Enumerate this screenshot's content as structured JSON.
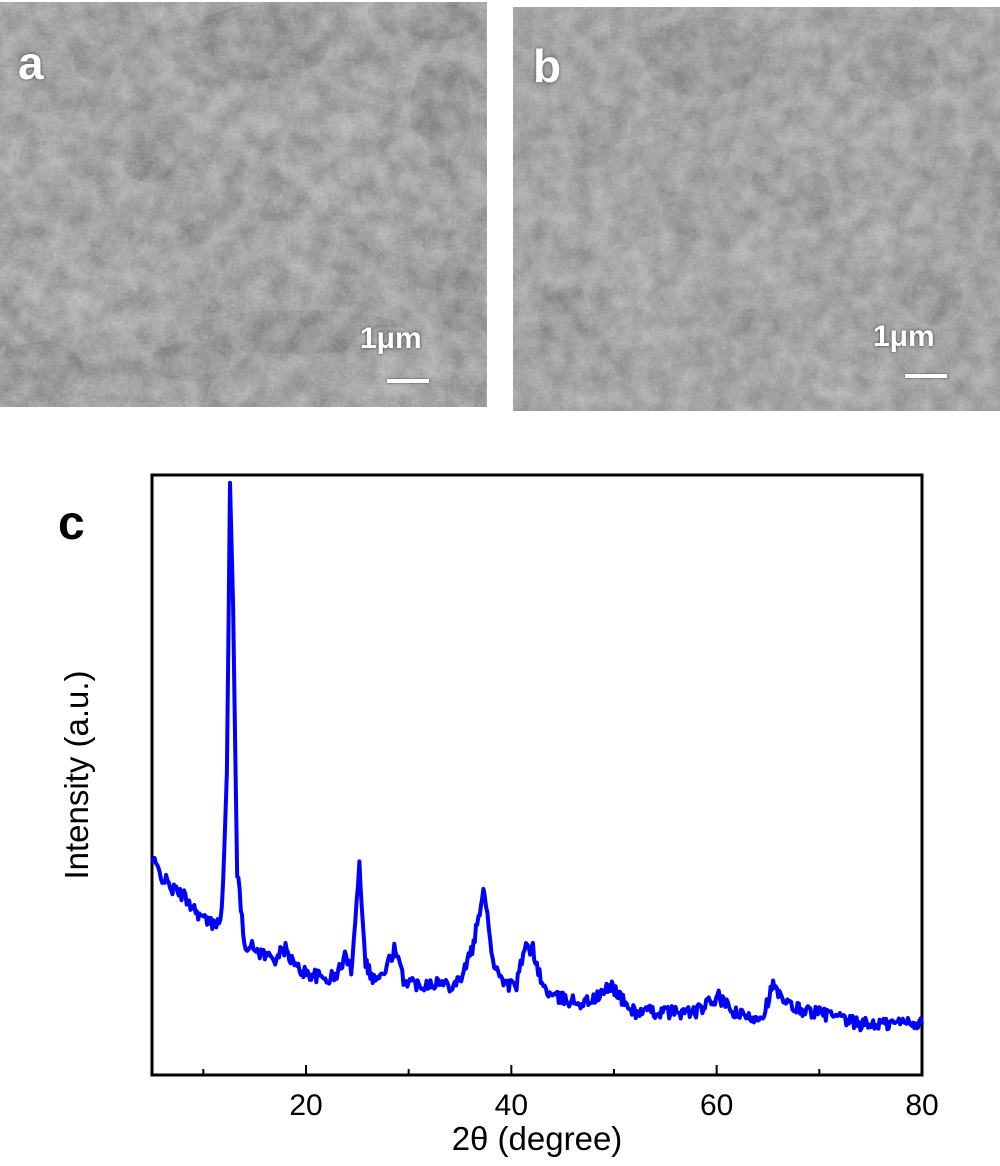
{
  "panels": {
    "a": {
      "letter": "a",
      "scale_label": "1μm"
    },
    "b": {
      "letter": "b",
      "scale_label": "1μm"
    },
    "c": {
      "letter": "c"
    }
  },
  "colors": {
    "series": "#0000ff",
    "axis": "#000000",
    "sem_background": "#6e6e6e"
  },
  "chart_data": {
    "type": "line",
    "title": "",
    "xlabel": "2θ (degree)",
    "ylabel": "Intensity (a.u.)",
    "xlim": [
      5,
      80
    ],
    "ylim": [
      0,
      100
    ],
    "y_ticks_shown": false,
    "grid": false,
    "x_ticks": [
      20,
      40,
      60,
      80
    ],
    "series": [
      {
        "name": "",
        "color": "#0000ff",
        "points": [
          [
            5,
            36
          ],
          [
            6,
            33
          ],
          [
            7,
            31
          ],
          [
            8,
            30
          ],
          [
            9,
            28
          ],
          [
            10,
            26
          ],
          [
            11,
            25
          ],
          [
            11.8,
            27
          ],
          [
            12.3,
            50
          ],
          [
            12.6,
            98
          ],
          [
            12.9,
            78
          ],
          [
            13.3,
            34
          ],
          [
            14,
            22
          ],
          [
            15,
            21
          ],
          [
            16,
            20
          ],
          [
            17,
            19.5
          ],
          [
            18,
            21
          ],
          [
            19,
            18
          ],
          [
            20,
            17
          ],
          [
            21,
            16.5
          ],
          [
            22,
            16
          ],
          [
            23,
            16.5
          ],
          [
            23.8,
            20
          ],
          [
            24.4,
            17.5
          ],
          [
            25.2,
            35
          ],
          [
            25.8,
            19
          ],
          [
            26.5,
            16
          ],
          [
            27.5,
            16.5
          ],
          [
            28.6,
            21
          ],
          [
            29.5,
            16
          ],
          [
            31,
            15
          ],
          [
            32.5,
            15.5
          ],
          [
            34,
            15
          ],
          [
            35,
            16
          ],
          [
            36.2,
            21
          ],
          [
            37.4,
            31
          ],
          [
            38.2,
            19
          ],
          [
            39.5,
            15
          ],
          [
            40.5,
            15
          ],
          [
            41.3,
            21
          ],
          [
            42.1,
            21
          ],
          [
            43,
            15
          ],
          [
            44,
            13
          ],
          [
            45.5,
            12.5
          ],
          [
            47,
            12
          ],
          [
            48.5,
            13
          ],
          [
            49.8,
            15
          ],
          [
            51,
            12
          ],
          [
            52,
            10.5
          ],
          [
            53.5,
            10.5
          ],
          [
            55,
            10.5
          ],
          [
            56.5,
            10.5
          ],
          [
            58,
            10.5
          ],
          [
            60.2,
            13
          ],
          [
            61.5,
            10.5
          ],
          [
            63,
            9.5
          ],
          [
            64.5,
            10
          ],
          [
            65.5,
            15
          ],
          [
            66.5,
            12
          ],
          [
            68,
            11
          ],
          [
            69.5,
            10.5
          ],
          [
            71,
            10
          ],
          [
            72.5,
            9
          ],
          [
            74,
            8.5
          ],
          [
            75.5,
            8.5
          ],
          [
            77,
            8.5
          ],
          [
            78.5,
            9
          ],
          [
            80,
            8.5
          ]
        ]
      }
    ]
  }
}
